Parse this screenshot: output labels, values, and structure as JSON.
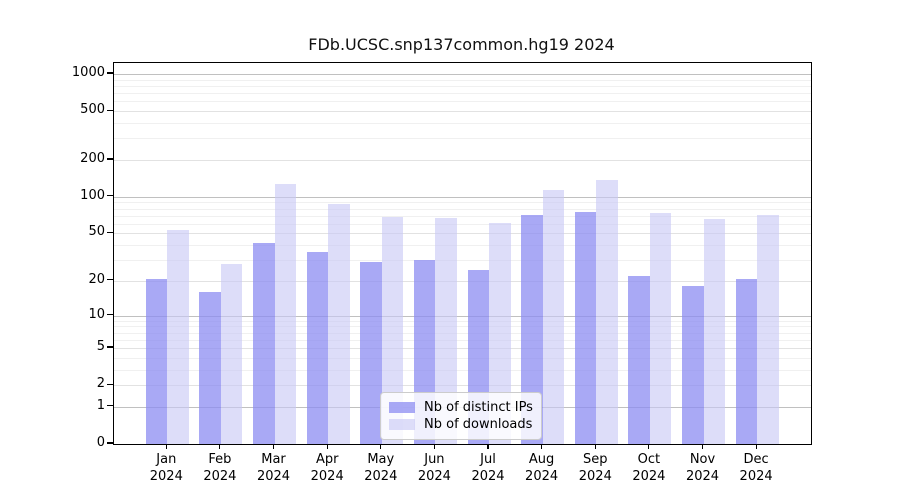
{
  "title": "FDb.UCSC.snp137common.hg19 2024",
  "legend": {
    "items": [
      {
        "label": "Nb of distinct IPs"
      },
      {
        "label": "Nb of downloads"
      }
    ]
  },
  "colors": {
    "ips_bar": "#8c8cf2",
    "ips_bar_opacity": 0.75,
    "downloads_bar": "#c8c8f5",
    "downloads_bar_opacity": 0.62,
    "grid_major": "#c0c0c0",
    "grid_mid": "#e2e2e2",
    "grid_minor": "#f0f0f0",
    "axis": "#000000"
  },
  "chart_data": {
    "type": "bar",
    "title": "FDb.UCSC.snp137common.hg19 2024",
    "categories": [
      "Jan 2024",
      "Feb 2024",
      "Mar 2024",
      "Apr 2024",
      "May 2024",
      "Jun 2024",
      "Jul 2024",
      "Aug 2024",
      "Sep 2024",
      "Oct 2024",
      "Nov 2024",
      "Dec 2024"
    ],
    "x_tick_lines": [
      [
        "Jan",
        "2024"
      ],
      [
        "Feb",
        "2024"
      ],
      [
        "Mar",
        "2024"
      ],
      [
        "Apr",
        "2024"
      ],
      [
        "May",
        "2024"
      ],
      [
        "Jun",
        "2024"
      ],
      [
        "Jul",
        "2024"
      ],
      [
        "Aug",
        "2024"
      ],
      [
        "Sep",
        "2024"
      ],
      [
        "Oct",
        "2024"
      ],
      [
        "Nov",
        "2024"
      ],
      [
        "Dec",
        "2024"
      ]
    ],
    "series": [
      {
        "name": "Nb of distinct IPs",
        "values": [
          21,
          16,
          42,
          35,
          29,
          30,
          25,
          71,
          75,
          22,
          18,
          21
        ]
      },
      {
        "name": "Nb of downloads",
        "values": [
          53,
          28,
          128,
          87,
          68,
          67,
          61,
          113,
          138,
          74,
          66,
          71
        ]
      }
    ],
    "yscale": "log1p",
    "y_ticks": [
      0,
      1,
      2,
      5,
      10,
      20,
      50,
      100,
      200,
      500,
      1000
    ],
    "ylim": [
      0,
      1000
    ],
    "xlabel": "",
    "ylabel": "",
    "grid": true,
    "legend_position": "lower center"
  }
}
